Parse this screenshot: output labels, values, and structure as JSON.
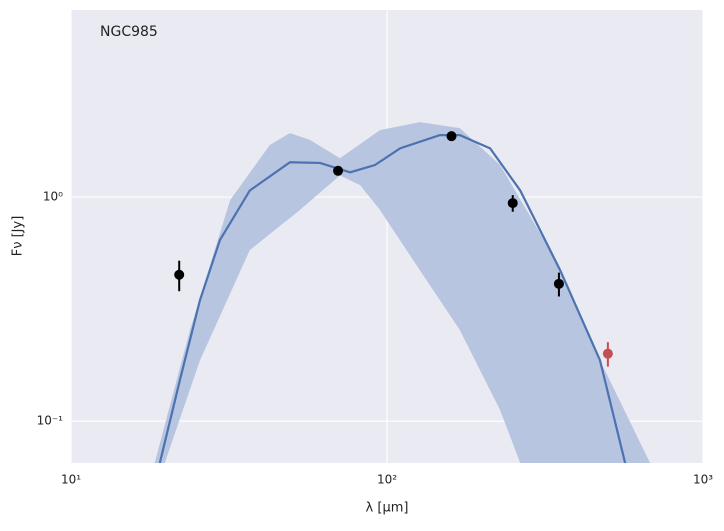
{
  "chart_data": {
    "type": "scatter",
    "annotation": "NGC985",
    "xlabel": "λ [μm]",
    "ylabel": "Fν [Jy]",
    "xscale": "log",
    "yscale": "log",
    "xlim": [
      10,
      1000
    ],
    "ylim": [
      0.065,
      6.84
    ],
    "xticks": [
      {
        "value": 10,
        "label": "10¹"
      },
      {
        "value": 100,
        "label": "10²"
      },
      {
        "value": 1000,
        "label": "10³"
      }
    ],
    "yticks": [
      {
        "value": 0.1,
        "label": "10⁻¹"
      },
      {
        "value": 1,
        "label": "10⁰"
      }
    ],
    "grid": true,
    "band": {
      "color": "#b7c5e0",
      "upper": {
        "x": [
          18.4,
          23.8,
          31.9,
          42.6,
          49.3,
          57.0,
          71.0,
          95.0,
          127,
          170,
          228,
          328,
          472,
          680
        ],
        "y": [
          0.065,
          0.255,
          0.97,
          1.71,
          1.93,
          1.8,
          1.49,
          1.99,
          2.16,
          2.03,
          1.39,
          0.58,
          0.187,
          0.065
        ]
      },
      "lower": {
        "x": [
          19.8,
          25.6,
          36.8,
          53.0,
          71.0,
          82.2,
          95.0,
          127,
          170,
          228,
          264
        ],
        "y": [
          0.065,
          0.187,
          0.58,
          0.875,
          1.25,
          1.13,
          0.875,
          0.472,
          0.255,
          0.112,
          0.065
        ]
      }
    },
    "series": [
      {
        "kind": "line",
        "color": "#4c72b0",
        "x": [
          19.1,
          22.1,
          25.6,
          29.6,
          36.8,
          49.3,
          61.4,
          76.4,
          91.6,
          110,
          147,
          170,
          212,
          264,
          353,
          472,
          567
        ],
        "values": [
          0.065,
          0.152,
          0.347,
          0.643,
          1.07,
          1.43,
          1.42,
          1.29,
          1.39,
          1.65,
          1.89,
          1.89,
          1.65,
          1.07,
          0.472,
          0.187,
          0.065
        ]
      },
      {
        "kind": "points",
        "color": "#000000",
        "x": [
          22,
          70,
          160,
          250,
          350
        ],
        "values": [
          0.45,
          1.31,
          1.87,
          0.94,
          0.41
        ],
        "yerr": [
          0.07,
          0.05,
          0.06,
          0.08,
          0.05
        ]
      },
      {
        "kind": "points",
        "color": "#c44e52",
        "x": [
          500
        ],
        "values": [
          0.2
        ],
        "yerr": [
          0.025
        ]
      }
    ]
  }
}
